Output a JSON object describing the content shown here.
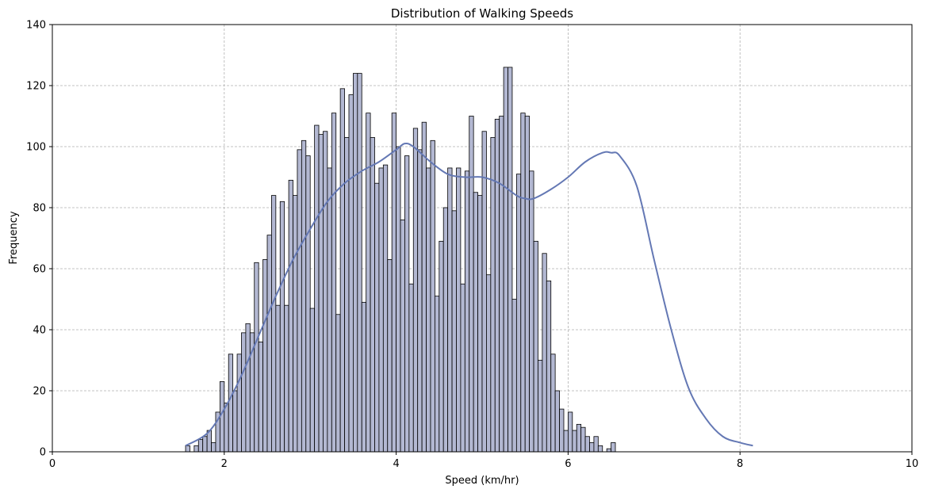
{
  "chart_data": {
    "type": "bar",
    "title": "Distribution of Walking Speeds",
    "xlabel": "Speed (km/hr)",
    "ylabel": "Frequency",
    "xlim": [
      0,
      10
    ],
    "ylim": [
      0,
      140
    ],
    "xticks": [
      "0",
      "2",
      "4",
      "6",
      "8",
      "10"
    ],
    "yticks": [
      "0",
      "20",
      "40",
      "60",
      "80",
      "100",
      "120",
      "140"
    ],
    "grid": true,
    "bin_start": 1.55,
    "bin_width": 0.05,
    "values": [
      2,
      0,
      2,
      4,
      5,
      7,
      3,
      13,
      23,
      16,
      32,
      20,
      32,
      39,
      42,
      39,
      62,
      36,
      63,
      71,
      84,
      48,
      82,
      48,
      89,
      84,
      99,
      102,
      97,
      47,
      107,
      104,
      105,
      93,
      111,
      45,
      119,
      103,
      117,
      124,
      124,
      49,
      111,
      103,
      88,
      93,
      94,
      63,
      111,
      100,
      76,
      97,
      55,
      106,
      99,
      108,
      93,
      102,
      51,
      69,
      80,
      93,
      79,
      93,
      55,
      92,
      110,
      85,
      84,
      105,
      58,
      103,
      109,
      110,
      126,
      126,
      50,
      91,
      111,
      110,
      92,
      69,
      30,
      65,
      56,
      32,
      20,
      14,
      7,
      13,
      7,
      9,
      8,
      5,
      3,
      5,
      2,
      0,
      1,
      3
    ],
    "kde": {
      "x": [
        1.55,
        1.8,
        2.0,
        2.2,
        2.4,
        2.6,
        2.8,
        3.0,
        3.2,
        3.4,
        3.6,
        3.8,
        4.0,
        4.1,
        4.2,
        4.4,
        4.6,
        4.8,
        5.0,
        5.2,
        5.4,
        5.5,
        5.6,
        5.8,
        6.0,
        6.2,
        6.4,
        6.5,
        6.6,
        6.8,
        7.0,
        7.2,
        7.4,
        7.6,
        7.8,
        8.0,
        8.15
      ],
      "y": [
        2,
        6,
        14,
        25,
        38,
        51,
        63,
        73,
        82,
        88,
        92,
        95,
        99,
        101,
        100,
        95,
        91,
        90,
        90,
        88,
        84,
        83,
        83,
        86,
        90,
        95,
        98,
        98,
        97,
        87,
        63,
        40,
        21,
        11,
        5,
        3,
        2
      ]
    },
    "bar_color": "#b3b8d2",
    "line_color": "#6478b4"
  }
}
